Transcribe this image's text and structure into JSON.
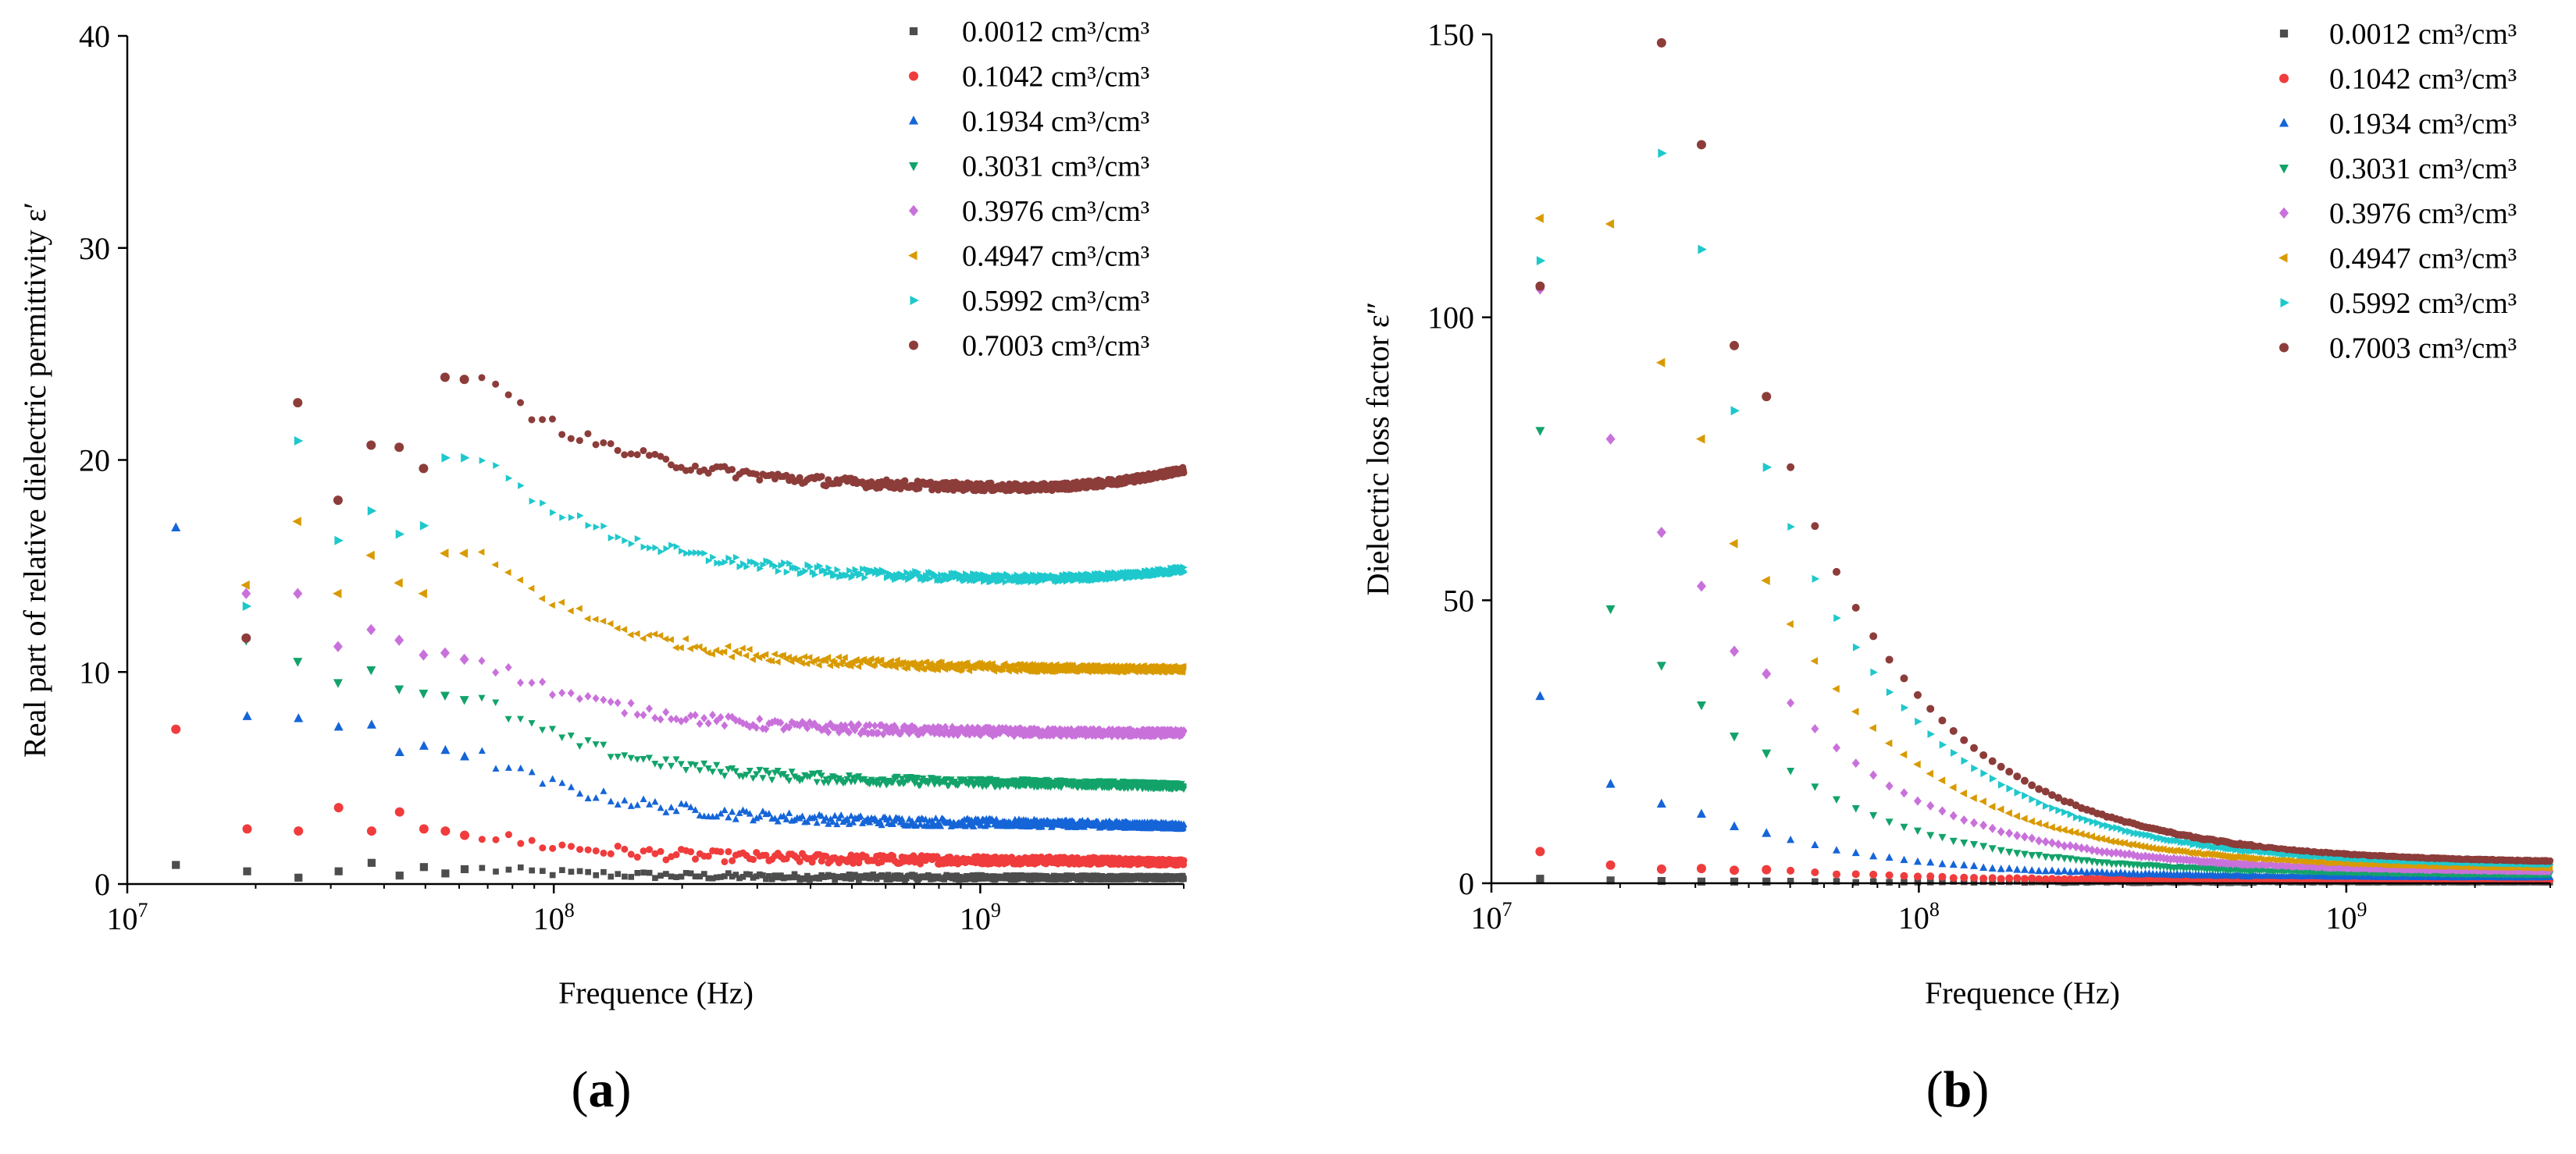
{
  "figure": {
    "panel_labels": [
      {
        "open": "(",
        "letter": "a",
        "close": ")"
      },
      {
        "open": "(",
        "letter": "b",
        "close": ")"
      }
    ]
  },
  "legend": {
    "series_names": [
      "0.0012 cm³/cm³",
      "0.1042 cm³/cm³",
      "0.1934 cm³/cm³",
      "0.3031 cm³/cm³",
      "0.3976 cm³/cm³",
      "0.4947 cm³/cm³",
      "0.5992 cm³/cm³",
      "0.7003 cm³/cm³"
    ],
    "colors": [
      "#4d4d4d",
      "#f03c3c",
      "#1565d8",
      "#12a36a",
      "#c971db",
      "#d99a00",
      "#1ec8cc",
      "#8c3d3a"
    ],
    "markers": [
      "square",
      "circle",
      "triangle-up",
      "triangle-down",
      "diamond",
      "triangle-left",
      "triangle-right",
      "circle"
    ]
  },
  "chart_data": [
    {
      "type": "scatter",
      "panel": "a",
      "title": "",
      "xlabel": "Frequence (Hz)",
      "ylabel": "Real part of relative dielectric permittivity ε′",
      "xscale": "log",
      "xlim": [
        10000000.0,
        3000000000.0
      ],
      "ylim": [
        0,
        40
      ],
      "x_ticks": [
        {
          "base": "10",
          "exp": "7",
          "value": 10000000.0
        },
        {
          "base": "10",
          "exp": "8",
          "value": 100000000.0
        },
        {
          "base": "10",
          "exp": "9",
          "value": 1000000000.0
        }
      ],
      "y_ticks": [
        "0",
        "10",
        "20",
        "30",
        "40"
      ],
      "legend_position": "top-right",
      "series": [
        {
          "name": "0.0012 cm³/cm³",
          "start_freq": 13000000.0,
          "early_values": [
            0.9,
            0.6,
            0.3,
            0.6,
            1.0,
            0.4,
            0.8,
            0.5,
            0.7
          ],
          "plateau": 0.3,
          "end_value": 0.3
        },
        {
          "name": "0.1042 cm³/cm³",
          "start_freq": 13000000.0,
          "early_values": [
            7.3,
            2.6,
            2.5,
            3.6,
            2.5,
            3.4,
            2.6,
            2.5,
            2.3
          ],
          "plateau": 1.1,
          "end_value": 1.0
        },
        {
          "name": "0.1934 cm³/cm³",
          "start_freq": 13000000.0,
          "early_values": [
            16.8,
            7.9,
            7.8,
            7.4,
            7.5,
            6.2,
            6.5,
            6.3,
            6.0
          ],
          "plateau": 2.8,
          "end_value": 2.7
        },
        {
          "name": "0.3031 cm³/cm³",
          "start_freq": 19000000.0,
          "early_values": [
            11.5,
            10.5,
            9.5,
            10.1,
            9.2,
            9.0,
            8.9,
            8.7
          ],
          "plateau": 4.7,
          "end_value": 4.6
        },
        {
          "name": "0.3976 cm³/cm³",
          "start_freq": 19000000.0,
          "early_values": [
            13.7,
            13.7,
            11.2,
            12.0,
            11.5,
            10.8,
            10.9,
            10.6
          ],
          "plateau": 7.1,
          "end_value": 7.1
        },
        {
          "name": "0.4947 cm³/cm³",
          "start_freq": 19000000.0,
          "early_values": [
            14.1,
            17.1,
            13.7,
            15.5,
            14.2,
            13.7,
            15.6,
            15.6
          ],
          "plateau": 10.1,
          "end_value": 10.1
        },
        {
          "name": "0.5992 cm³/cm³",
          "start_freq": 19000000.0,
          "early_values": [
            13.1,
            20.9,
            16.2,
            17.6,
            16.5,
            16.9,
            20.1,
            20.1
          ],
          "plateau": 14.3,
          "end_value": 14.8
        },
        {
          "name": "0.7003 cm³/cm³",
          "start_freq": 19000000.0,
          "early_values": [
            11.6,
            22.7,
            18.1,
            20.7,
            20.6,
            19.6,
            23.9,
            23.8
          ],
          "plateau": 18.6,
          "end_value": 19.5
        }
      ]
    },
    {
      "type": "scatter",
      "panel": "b",
      "title": "",
      "xlabel": "Frequence (Hz)",
      "ylabel": "Dielectric loss factor ε″",
      "xscale": "log",
      "xlim": [
        10000000.0,
        3000000000.0
      ],
      "ylim": [
        0,
        150
      ],
      "x_ticks": [
        {
          "base": "10",
          "exp": "7",
          "value": 10000000.0
        },
        {
          "base": "10",
          "exp": "8",
          "value": 100000000.0
        },
        {
          "base": "10",
          "exp": "9",
          "value": 1000000000.0
        }
      ],
      "y_ticks": [
        "0",
        "50",
        "100",
        "150"
      ],
      "legend_position": "top-right",
      "series": [
        {
          "name": "0.0012 cm³/cm³",
          "points": [
            [
              13000000.0,
              0.8
            ],
            [
              19000000.0,
              0.5
            ],
            [
              25000000.0,
              0.4
            ],
            [
              31000000.0,
              0.3
            ],
            [
              37000000.0,
              0.3
            ],
            [
              44000000.0,
              0.3
            ]
          ],
          "end_value": 0.2
        },
        {
          "name": "0.1042 cm³/cm³",
          "points": [
            [
              13000000.0,
              5.6
            ],
            [
              19000000.0,
              3.2
            ],
            [
              25000000.0,
              2.5
            ],
            [
              31000000.0,
              2.6
            ],
            [
              37000000.0,
              2.3
            ],
            [
              44000000.0,
              2.4
            ]
          ],
          "end_value": 0.5
        },
        {
          "name": "0.1934 cm³/cm³",
          "points": [
            [
              13000000.0,
              33.0
            ],
            [
              19000000.0,
              17.5
            ],
            [
              25000000.0,
              14.0
            ],
            [
              31000000.0,
              12.2
            ],
            [
              37000000.0,
              10.0
            ],
            [
              44000000.0,
              8.8
            ]
          ],
          "end_value": 1.0
        },
        {
          "name": "0.3031 cm³/cm³",
          "points": [
            [
              13000000.0,
              80.0
            ],
            [
              19000000.0,
              48.5
            ],
            [
              25000000.0,
              38.5
            ],
            [
              31000000.0,
              31.5
            ],
            [
              37000000.0,
              26.0
            ],
            [
              44000000.0,
              23.0
            ]
          ],
          "end_value": 1.5
        },
        {
          "name": "0.3976 cm³/cm³",
          "points": [
            [
              13000000.0,
              105.0
            ],
            [
              19000000.0,
              78.5
            ],
            [
              25000000.0,
              62.0
            ],
            [
              31000000.0,
              52.5
            ],
            [
              37000000.0,
              41.0
            ],
            [
              44000000.0,
              37.0
            ]
          ],
          "end_value": 2.0
        },
        {
          "name": "0.4947 cm³/cm³",
          "points": [
            [
              13000000.0,
              117.5
            ],
            [
              19000000.0,
              116.5
            ],
            [
              25000000.0,
              92.0
            ],
            [
              31000000.0,
              78.5
            ],
            [
              37000000.0,
              60.0
            ],
            [
              44000000.0,
              53.5
            ]
          ],
          "end_value": 2.5
        },
        {
          "name": "0.5992 cm³/cm³",
          "points": [
            [
              13000000.0,
              110.0
            ],
            [
              25000000.0,
              129.0
            ],
            [
              31000000.0,
              112.0
            ],
            [
              37000000.0,
              83.5
            ],
            [
              44000000.0,
              73.5
            ]
          ],
          "end_value": 3.0
        },
        {
          "name": "0.7003 cm³/cm³",
          "points": [
            [
              13000000.0,
              105.5
            ],
            [
              25000000.0,
              148.5
            ],
            [
              31000000.0,
              130.5
            ],
            [
              37000000.0,
              95.0
            ],
            [
              44000000.0,
              86.0
            ]
          ],
          "end_value": 3.5
        }
      ]
    }
  ]
}
